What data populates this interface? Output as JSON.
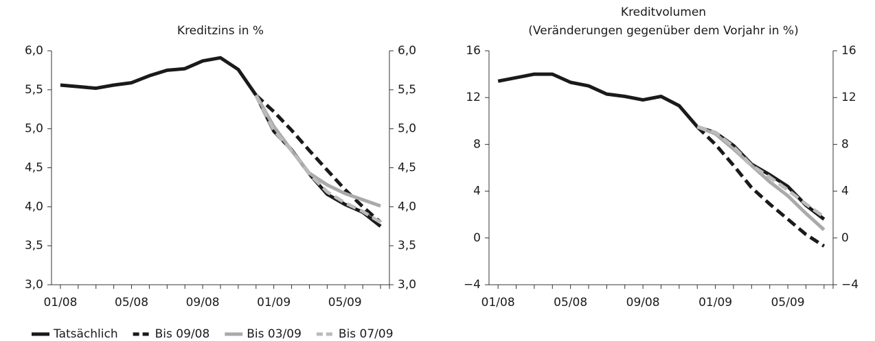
{
  "chart_data": [
    {
      "type": "line",
      "title": "Kreditzins in %",
      "categories": [
        "01/08",
        null,
        null,
        null,
        "05/08",
        null,
        null,
        null,
        "09/08",
        null,
        null,
        null,
        "01/09",
        null,
        null,
        null,
        "05/09",
        null,
        null
      ],
      "series": [
        {
          "name": "Tatsächlich",
          "color": "#1a1a1a",
          "style": "solid",
          "values": [
            5.56,
            5.54,
            5.52,
            5.56,
            5.59,
            5.68,
            5.75,
            5.77,
            5.87,
            5.91,
            5.76,
            5.43,
            4.97,
            4.73,
            4.42,
            4.16,
            4.03,
            3.93,
            3.75
          ]
        },
        {
          "name": "Bis 09/08",
          "color": "#1a1a1a",
          "style": "dashed",
          "values": [
            null,
            null,
            null,
            null,
            null,
            null,
            null,
            null,
            null,
            null,
            null,
            5.43,
            5.22,
            4.98,
            4.72,
            4.47,
            4.22,
            4.0,
            3.8
          ]
        },
        {
          "name": "Bis 03/09",
          "color": "#aaaaaa",
          "style": "solid",
          "values": [
            null,
            null,
            null,
            null,
            null,
            null,
            null,
            null,
            null,
            null,
            null,
            5.43,
            5.03,
            4.72,
            4.43,
            4.28,
            4.17,
            4.09,
            4.01
          ]
        },
        {
          "name": "Bis 07/09",
          "color": "#bbbbbb",
          "style": "dashed",
          "values": [
            null,
            null,
            null,
            null,
            null,
            null,
            null,
            null,
            null,
            null,
            null,
            5.43,
            4.98,
            4.72,
            4.42,
            4.19,
            4.05,
            3.94,
            3.8
          ]
        }
      ],
      "ylim": [
        3.0,
        6.0
      ],
      "yticks": [
        {
          "value": 3.0,
          "label": "3,0"
        },
        {
          "value": 3.5,
          "label": "3,5"
        },
        {
          "value": 4.0,
          "label": "4,0"
        },
        {
          "value": 4.5,
          "label": "4,5"
        },
        {
          "value": 5.0,
          "label": "5,0"
        },
        {
          "value": 5.5,
          "label": "5,5"
        },
        {
          "value": 6.0,
          "label": "6,0"
        }
      ],
      "y2lim": [
        3.0,
        6.0
      ],
      "y2ticks": [
        {
          "value": 3.0,
          "label": "3,0"
        },
        {
          "value": 3.5,
          "label": "3,5"
        },
        {
          "value": 4.0,
          "label": "4,0"
        },
        {
          "value": 4.5,
          "label": "4,5"
        },
        {
          "value": 5.0,
          "label": "5,0"
        },
        {
          "value": 5.5,
          "label": "5,5"
        },
        {
          "value": 6.0,
          "label": "6,0"
        }
      ],
      "grid": false,
      "legend": "bottom-left"
    },
    {
      "type": "line",
      "title": "Kreditvolumen",
      "subtitle": "(Veränderungen gegenüber dem Vorjahr in %)",
      "categories": [
        "01/08",
        null,
        null,
        null,
        "05/08",
        null,
        null,
        null,
        "09/08",
        null,
        null,
        null,
        "01/09",
        null,
        null,
        null,
        "05/09",
        null,
        null
      ],
      "series": [
        {
          "name": "Tatsächlich",
          "color": "#1a1a1a",
          "style": "solid",
          "values": [
            13.4,
            13.7,
            14.0,
            14.0,
            13.3,
            13.0,
            12.3,
            12.1,
            11.8,
            12.1,
            11.3,
            9.5,
            9.0,
            7.9,
            6.3,
            5.4,
            4.4,
            2.8,
            1.6
          ]
        },
        {
          "name": "Bis 09/08",
          "color": "#1a1a1a",
          "style": "dashed",
          "values": [
            null,
            null,
            null,
            null,
            null,
            null,
            null,
            null,
            null,
            null,
            null,
            9.5,
            8.0,
            6.2,
            4.3,
            2.9,
            1.6,
            0.3,
            -0.7
          ]
        },
        {
          "name": "Bis 03/09",
          "color": "#aaaaaa",
          "style": "solid",
          "values": [
            null,
            null,
            null,
            null,
            null,
            null,
            null,
            null,
            null,
            null,
            null,
            9.5,
            8.9,
            7.6,
            6.2,
            4.8,
            3.6,
            2.1,
            0.7
          ]
        },
        {
          "name": "Bis 07/09",
          "color": "#bbbbbb",
          "style": "dashed",
          "values": [
            null,
            null,
            null,
            null,
            null,
            null,
            null,
            null,
            null,
            null,
            null,
            9.5,
            9.0,
            7.8,
            6.2,
            5.2,
            4.1,
            2.9,
            1.8
          ]
        }
      ],
      "ylim": [
        -4,
        16
      ],
      "yticks": [
        {
          "value": -4,
          "label": "−4"
        },
        0,
        4,
        8,
        12,
        16
      ],
      "y2lim": [
        -4,
        16
      ],
      "y2ticks": [
        {
          "value": -4,
          "label": "−4"
        },
        0,
        4,
        8,
        12,
        16
      ],
      "grid": false
    }
  ]
}
